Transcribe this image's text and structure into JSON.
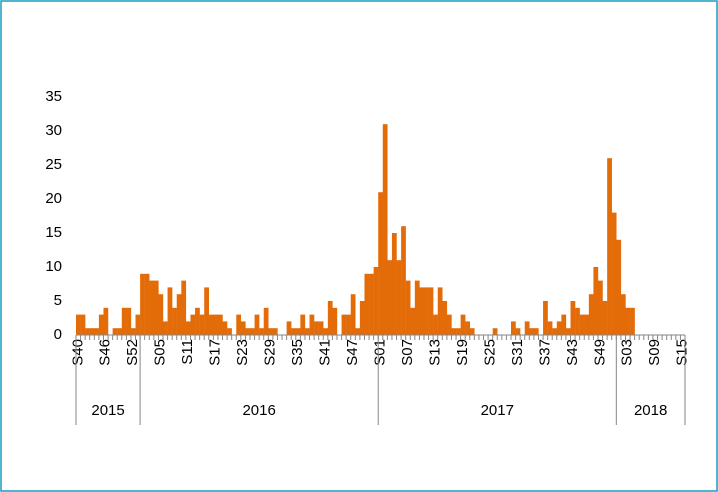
{
  "chart_data": {
    "type": "bar",
    "color": "#e36c09",
    "categories": [
      "S40",
      null,
      null,
      null,
      null,
      null,
      "S46",
      null,
      null,
      null,
      null,
      null,
      "S52",
      null,
      null,
      null,
      null,
      null,
      "S05",
      null,
      null,
      null,
      null,
      null,
      "S11",
      null,
      null,
      null,
      null,
      null,
      "S17",
      null,
      null,
      null,
      null,
      null,
      "S23",
      null,
      null,
      null,
      null,
      null,
      "S29",
      null,
      null,
      null,
      null,
      null,
      "S35",
      null,
      null,
      null,
      null,
      null,
      "S41",
      null,
      null,
      null,
      null,
      null,
      "S47",
      null,
      null,
      null,
      null,
      null,
      "S01",
      null,
      null,
      null,
      null,
      null,
      "S07",
      null,
      null,
      null,
      null,
      null,
      "S13",
      null,
      null,
      null,
      null,
      null,
      "S19",
      null,
      null,
      null,
      null,
      null,
      "S25",
      null,
      null,
      null,
      null,
      null,
      "S31",
      null,
      null,
      null,
      null,
      null,
      "S37",
      null,
      null,
      null,
      null,
      null,
      "S43",
      null,
      null,
      null,
      null,
      null,
      "S49",
      null,
      null,
      null,
      null,
      null,
      "S03",
      null,
      null,
      null,
      null,
      null,
      "S09",
      null,
      null,
      null,
      null,
      null,
      "S15"
    ],
    "groups": [
      {
        "name": "2015",
        "size": 14
      },
      {
        "name": "2016",
        "size": 52
      },
      {
        "name": "2017",
        "size": 52
      },
      {
        "name": "2018",
        "size": 15
      }
    ],
    "values": [
      3,
      3,
      1,
      1,
      1,
      3,
      4,
      0,
      1,
      1,
      4,
      4,
      1,
      3,
      9,
      9,
      8,
      8,
      6,
      2,
      7,
      4,
      6,
      8,
      2,
      3,
      4,
      3,
      7,
      3,
      3,
      3,
      2,
      1,
      0,
      3,
      2,
      1,
      1,
      3,
      1,
      4,
      1,
      1,
      0,
      0,
      2,
      1,
      1,
      3,
      1,
      3,
      2,
      2,
      1,
      5,
      4,
      0,
      3,
      3,
      6,
      1,
      5,
      9,
      9,
      10,
      21,
      31,
      11,
      15,
      11,
      16,
      8,
      4,
      8,
      7,
      7,
      7,
      3,
      7,
      5,
      3,
      1,
      1,
      3,
      2,
      1,
      0,
      0,
      0,
      0,
      1,
      0,
      0,
      0,
      2,
      1,
      0,
      2,
      1,
      1,
      0,
      5,
      2,
      1,
      2,
      3,
      1,
      5,
      4,
      3,
      3,
      6,
      10,
      8,
      5,
      26,
      18,
      14,
      6,
      4,
      4,
      0,
      0,
      0,
      0,
      0,
      0,
      0,
      0,
      0,
      0,
      0
    ],
    "ylim": [
      0,
      35
    ],
    "yticks": [
      0,
      5,
      10,
      15,
      20,
      25,
      30,
      35
    ],
    "grid": false
  }
}
